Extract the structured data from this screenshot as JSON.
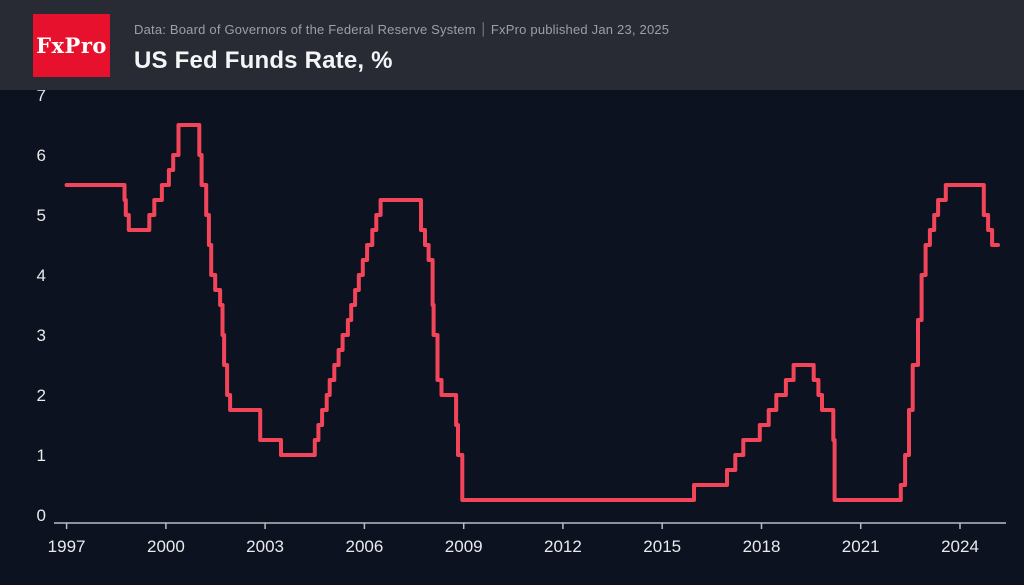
{
  "header": {
    "logo_text": "FxPro",
    "source_line": "Data: Board of Governors of the Federal Reserve System ⏐ FxPro published Jan 23, 2025",
    "title": "US Fed Funds Rate, %"
  },
  "colors": {
    "background": "#0d1220",
    "header": "#282b33",
    "logo_red": "#e8112d",
    "line": "#f2455a",
    "tick_text": "#e9eaec",
    "axis": "#b9bcc2",
    "subtitle": "#9aa0a8",
    "title": "#f4f5f7"
  },
  "chart_data": {
    "type": "line",
    "step": true,
    "title": "US Fed Funds Rate, %",
    "ylabel": "",
    "xlabel": "",
    "xlim": [
      1996.8,
      2025.3
    ],
    "ylim": [
      0,
      7
    ],
    "x_ticks": [
      1997,
      2000,
      2003,
      2006,
      2009,
      2012,
      2015,
      2018,
      2021,
      2024
    ],
    "y_ticks": [
      0,
      1,
      2,
      3,
      4,
      5,
      6,
      7
    ],
    "x_end": 2025.15,
    "grid": false,
    "legend": false,
    "series_name": "US Fed Funds Rate (%)",
    "points": [
      [
        1997.0,
        5.5
      ],
      [
        1998.75,
        5.25
      ],
      [
        1998.79,
        5.0
      ],
      [
        1998.88,
        4.75
      ],
      [
        1999.5,
        5.0
      ],
      [
        1999.65,
        5.25
      ],
      [
        1999.88,
        5.5
      ],
      [
        2000.09,
        5.75
      ],
      [
        2000.22,
        6.0
      ],
      [
        2000.38,
        6.5
      ],
      [
        2001.01,
        6.0
      ],
      [
        2001.08,
        5.5
      ],
      [
        2001.22,
        5.0
      ],
      [
        2001.3,
        4.5
      ],
      [
        2001.37,
        4.0
      ],
      [
        2001.49,
        3.75
      ],
      [
        2001.64,
        3.5
      ],
      [
        2001.71,
        3.0
      ],
      [
        2001.76,
        2.5
      ],
      [
        2001.85,
        2.0
      ],
      [
        2001.94,
        1.75
      ],
      [
        2002.85,
        1.25
      ],
      [
        2003.48,
        1.0
      ],
      [
        2004.5,
        1.25
      ],
      [
        2004.61,
        1.5
      ],
      [
        2004.72,
        1.75
      ],
      [
        2004.86,
        2.0
      ],
      [
        2004.95,
        2.25
      ],
      [
        2005.09,
        2.5
      ],
      [
        2005.22,
        2.75
      ],
      [
        2005.34,
        3.0
      ],
      [
        2005.5,
        3.25
      ],
      [
        2005.6,
        3.5
      ],
      [
        2005.72,
        3.75
      ],
      [
        2005.83,
        4.0
      ],
      [
        2005.95,
        4.25
      ],
      [
        2006.08,
        4.5
      ],
      [
        2006.24,
        4.75
      ],
      [
        2006.36,
        5.0
      ],
      [
        2006.49,
        5.25
      ],
      [
        2007.71,
        4.75
      ],
      [
        2007.83,
        4.5
      ],
      [
        2007.94,
        4.25
      ],
      [
        2008.06,
        3.5
      ],
      [
        2008.09,
        3.0
      ],
      [
        2008.21,
        2.25
      ],
      [
        2008.33,
        2.0
      ],
      [
        2008.77,
        1.5
      ],
      [
        2008.83,
        1.0
      ],
      [
        2008.96,
        0.25
      ],
      [
        2015.96,
        0.5
      ],
      [
        2016.96,
        0.75
      ],
      [
        2017.21,
        1.0
      ],
      [
        2017.45,
        1.25
      ],
      [
        2017.95,
        1.5
      ],
      [
        2018.22,
        1.75
      ],
      [
        2018.45,
        2.0
      ],
      [
        2018.74,
        2.25
      ],
      [
        2018.97,
        2.5
      ],
      [
        2019.58,
        2.25
      ],
      [
        2019.72,
        2.0
      ],
      [
        2019.83,
        1.75
      ],
      [
        2020.17,
        1.25
      ],
      [
        2020.21,
        0.25
      ],
      [
        2022.21,
        0.5
      ],
      [
        2022.34,
        1.0
      ],
      [
        2022.46,
        1.75
      ],
      [
        2022.57,
        2.5
      ],
      [
        2022.73,
        3.25
      ],
      [
        2022.84,
        4.0
      ],
      [
        2022.96,
        4.5
      ],
      [
        2023.09,
        4.75
      ],
      [
        2023.22,
        5.0
      ],
      [
        2023.34,
        5.25
      ],
      [
        2023.57,
        5.5
      ],
      [
        2024.72,
        5.0
      ],
      [
        2024.85,
        4.75
      ],
      [
        2024.97,
        4.5
      ]
    ]
  }
}
